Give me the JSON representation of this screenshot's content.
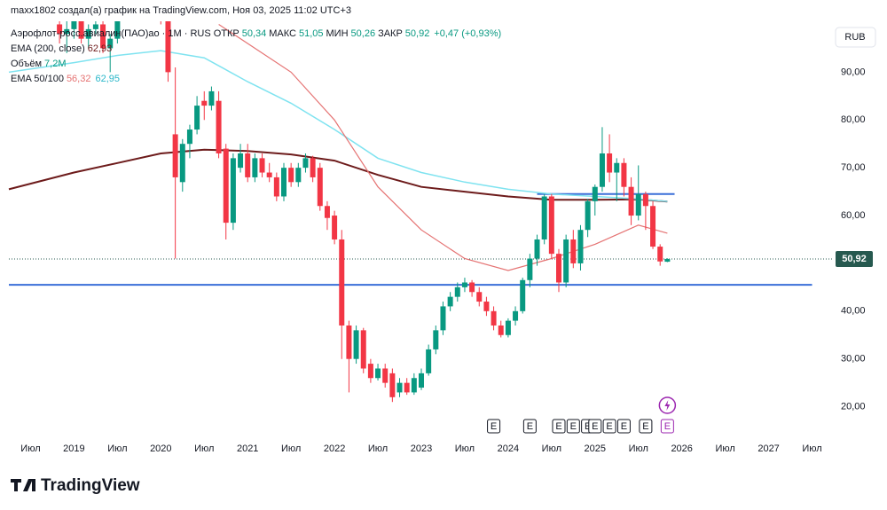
{
  "header": {
    "text": "maxx1802 создал(а) график на TradingView.com, Ноя 03, 2025 11:02 UTC+3"
  },
  "legend": {
    "symbol": "Аэрофлот-росс.авиалин(ПАО)ао · 1М · RUS",
    "open_label": "ОТКР",
    "open": "50,34",
    "high_label": "МАКС",
    "high": "51,05",
    "low_label": "МИН",
    "low": "50,26",
    "close_label": "ЗАКР",
    "close": "50,92",
    "change": "+0,47 (+0,93%)",
    "ema200_label": "EMA (200, close)",
    "ema200": "62,93",
    "volume_label": "Объём",
    "volume": "7,2M",
    "ema50100_label": "EMA 50/100",
    "ema50": "56,32",
    "ema100": "62,95"
  },
  "currency": "RUB",
  "footer": {
    "brand": "TradingView"
  },
  "chart_data": {
    "type": "candlestick",
    "up_color": "#089981",
    "down_color": "#f23645",
    "xlim": [
      "2018-04",
      "2027-10"
    ],
    "ylim": [
      13.8,
      105.1
    ],
    "xticks": [
      {
        "value": "2018-07",
        "label": "Июл"
      },
      {
        "value": "2019-01",
        "label": "2019"
      },
      {
        "value": "2019-07",
        "label": "Июл"
      },
      {
        "value": "2020-01",
        "label": "2020"
      },
      {
        "value": "2020-07",
        "label": "Июл"
      },
      {
        "value": "2021-01",
        "label": "2021"
      },
      {
        "value": "2021-07",
        "label": "Июл"
      },
      {
        "value": "2022-01",
        "label": "2022"
      },
      {
        "value": "2022-07",
        "label": "Июл"
      },
      {
        "value": "2023-01",
        "label": "2023"
      },
      {
        "value": "2023-07",
        "label": "Июл"
      },
      {
        "value": "2024-01",
        "label": "2024"
      },
      {
        "value": "2024-07",
        "label": "Июл"
      },
      {
        "value": "2025-01",
        "label": "2025"
      },
      {
        "value": "2025-07",
        "label": "Июл"
      },
      {
        "value": "2026-01",
        "label": "2026"
      },
      {
        "value": "2026-07",
        "label": "Июл"
      },
      {
        "value": "2027-01",
        "label": "2027"
      },
      {
        "value": "2027-07",
        "label": "Июл"
      }
    ],
    "yticks": [
      {
        "value": 20,
        "label": "20,00"
      },
      {
        "value": 30,
        "label": "30,00"
      },
      {
        "value": 40,
        "label": "40,00"
      },
      {
        "value": 60,
        "label": "60,00"
      },
      {
        "value": 70,
        "label": "70,00"
      },
      {
        "value": 80,
        "label": "80,00"
      },
      {
        "value": 90,
        "label": "90,00"
      }
    ],
    "x": [
      "2018-11",
      "2018-12",
      "2019-01",
      "2019-02",
      "2019-03",
      "2019-04",
      "2019-05",
      "2019-06",
      "2019-07",
      "2019-08",
      "2019-09",
      "2019-10",
      "2019-11",
      "2019-12",
      "2020-01",
      "2020-02",
      "2020-03",
      "2020-04",
      "2020-05",
      "2020-06",
      "2020-07",
      "2020-08",
      "2020-09",
      "2020-10",
      "2020-11",
      "2020-12",
      "2021-01",
      "2021-02",
      "2021-03",
      "2021-04",
      "2021-05",
      "2021-06",
      "2021-07",
      "2021-08",
      "2021-09",
      "2021-10",
      "2021-11",
      "2021-12",
      "2022-01",
      "2022-02",
      "2022-03",
      "2022-04",
      "2022-05",
      "2022-06",
      "2022-07",
      "2022-08",
      "2022-09",
      "2022-10",
      "2022-11",
      "2022-12",
      "2023-01",
      "2023-02",
      "2023-03",
      "2023-04",
      "2023-05",
      "2023-06",
      "2023-07",
      "2023-08",
      "2023-09",
      "2023-10",
      "2023-11",
      "2023-12",
      "2024-01",
      "2024-02",
      "2024-03",
      "2024-04",
      "2024-05",
      "2024-06",
      "2024-07",
      "2024-08",
      "2024-09",
      "2024-10",
      "2024-11",
      "2024-12",
      "2025-01",
      "2025-02",
      "2025-03",
      "2025-04",
      "2025-05",
      "2025-06",
      "2025-07",
      "2025-08",
      "2025-09",
      "2025-10",
      "2025-11"
    ],
    "ohlc": [
      [
        100,
        104,
        96,
        98
      ],
      [
        98,
        101,
        94,
        99
      ],
      [
        99,
        103,
        97,
        101
      ],
      [
        101,
        102,
        96,
        97
      ],
      [
        97,
        100,
        95,
        99
      ],
      [
        99,
        103,
        98,
        100
      ],
      [
        100,
        101,
        94,
        95
      ],
      [
        95,
        98,
        90,
        97
      ],
      [
        97,
        104,
        96,
        103
      ],
      [
        103,
        110,
        101,
        108
      ],
      [
        108,
        112,
        104,
        106
      ],
      [
        106,
        110,
        103,
        109
      ],
      [
        109,
        112,
        105,
        107
      ],
      [
        107,
        110,
        104,
        108
      ],
      [
        108,
        110,
        100,
        102
      ],
      [
        102,
        104,
        88,
        90
      ],
      [
        77,
        91,
        51,
        68
      ],
      [
        67,
        76,
        65,
        75
      ],
      [
        75,
        79,
        72,
        78
      ],
      [
        78,
        85,
        77,
        83
      ],
      [
        84,
        86,
        80,
        83
      ],
      [
        83,
        87,
        82,
        86
      ],
      [
        84,
        86,
        72,
        73
      ],
      [
        74,
        75,
        55,
        58.5
      ],
      [
        58.5,
        73,
        57,
        72
      ],
      [
        70,
        75,
        69,
        73
      ],
      [
        73,
        75,
        67,
        68
      ],
      [
        68,
        73,
        67,
        72
      ],
      [
        72,
        73,
        68,
        69
      ],
      [
        69,
        71,
        67,
        68
      ],
      [
        68,
        69,
        63,
        64
      ],
      [
        64,
        71,
        63,
        70
      ],
      [
        70,
        71,
        66,
        67
      ],
      [
        67,
        71,
        66,
        70
      ],
      [
        70,
        73,
        69,
        72
      ],
      [
        72,
        72.5,
        67,
        68
      ],
      [
        70,
        71,
        61,
        62
      ],
      [
        62,
        63,
        57,
        59.5
      ],
      [
        60,
        61,
        54,
        55
      ],
      [
        55,
        57,
        30,
        37
      ],
      [
        37,
        38,
        23,
        30
      ],
      [
        30,
        37,
        29,
        36
      ],
      [
        36,
        36.5,
        27,
        28
      ],
      [
        29,
        30,
        25,
        26
      ],
      [
        26,
        29,
        25.5,
        28
      ],
      [
        28,
        29,
        24,
        25
      ],
      [
        27,
        28,
        21,
        22
      ],
      [
        23,
        26,
        22,
        25
      ],
      [
        25,
        26,
        22.5,
        23
      ],
      [
        23,
        27,
        22.5,
        26
      ],
      [
        24,
        28,
        23.5,
        27
      ],
      [
        27,
        33,
        26.5,
        32
      ],
      [
        32,
        37,
        31,
        36
      ],
      [
        36,
        42,
        35,
        41
      ],
      [
        41,
        44,
        40,
        43
      ],
      [
        43,
        46,
        42,
        45
      ],
      [
        45,
        47,
        44,
        46
      ],
      [
        46,
        46.5,
        43,
        44
      ],
      [
        44,
        45,
        41,
        42
      ],
      [
        42,
        43,
        39,
        40
      ],
      [
        40,
        41,
        36,
        37
      ],
      [
        37,
        38,
        34.5,
        35
      ],
      [
        35,
        38.5,
        34.5,
        38
      ],
      [
        38,
        41,
        37,
        40
      ],
      [
        40,
        47,
        39.5,
        46.5
      ],
      [
        46.5,
        52,
        45,
        51
      ],
      [
        51,
        56,
        49.5,
        55
      ],
      [
        55,
        64.5,
        54,
        64
      ],
      [
        64,
        64.5,
        51,
        52
      ],
      [
        52,
        53,
        44,
        46
      ],
      [
        46,
        56,
        45,
        55
      ],
      [
        55,
        57,
        49,
        50
      ],
      [
        50,
        58,
        48.5,
        57
      ],
      [
        57,
        63.5,
        55.5,
        63
      ],
      [
        63,
        66.5,
        60,
        66
      ],
      [
        66,
        78.5,
        65,
        73
      ],
      [
        73,
        77,
        67,
        69
      ],
      [
        69,
        72,
        63,
        71
      ],
      [
        71,
        72,
        64,
        66
      ],
      [
        66,
        68,
        58,
        60
      ],
      [
        60,
        70.5,
        59,
        64.5
      ],
      [
        64.5,
        65,
        57,
        62
      ],
      [
        62,
        63,
        53,
        53.5
      ],
      [
        53.5,
        54,
        49.5,
        50.4
      ],
      [
        50.34,
        51.05,
        50.26,
        50.92
      ]
    ],
    "lines": [
      {
        "name": "EMA 200",
        "color": "#6d1b1b",
        "width": 2,
        "x": [
          "2018-04",
          "2019-01",
          "2019-07",
          "2020-01",
          "2020-07",
          "2021-01",
          "2021-07",
          "2022-01",
          "2022-07",
          "2023-01",
          "2023-07",
          "2024-01",
          "2024-07",
          "2025-01",
          "2025-07",
          "2025-11"
        ],
        "values": [
          65.5,
          69,
          71,
          73,
          73.8,
          73.5,
          72.8,
          71.5,
          68.5,
          66,
          65,
          64,
          63.3,
          63.3,
          63.4,
          62.93
        ]
      },
      {
        "name": "EMA 100",
        "color": "#7fe3f0",
        "width": 1.5,
        "x": [
          "2018-04",
          "2019-01",
          "2019-07",
          "2020-01",
          "2020-07",
          "2021-01",
          "2021-07",
          "2022-01",
          "2022-07",
          "2023-01",
          "2023-07",
          "2024-01",
          "2024-07",
          "2025-01",
          "2025-07",
          "2025-11"
        ],
        "values": [
          90,
          92,
          93.5,
          94.5,
          93,
          88,
          83.5,
          78,
          72,
          69,
          67,
          65.5,
          64.5,
          64,
          63.5,
          62.95
        ]
      },
      {
        "name": "EMA 50",
        "color": "#e57373",
        "width": 1.2,
        "x": [
          "2020-09",
          "2021-01",
          "2021-07",
          "2022-01",
          "2022-07",
          "2023-01",
          "2023-07",
          "2024-01",
          "2024-07",
          "2025-01",
          "2025-07",
          "2025-11"
        ],
        "values": [
          100,
          96,
          90,
          80,
          66,
          57,
          51,
          48.5,
          51,
          54,
          58,
          56.32
        ]
      }
    ],
    "hlines": [
      {
        "value": 45.5,
        "from": "2018-04",
        "to": "2027-07",
        "color": "#3a6fd8"
      },
      {
        "value": 64.5,
        "from": "2024-05",
        "to": "2025-12",
        "color": "#3a6fd8"
      }
    ],
    "last_price": {
      "value": 50.92,
      "label": "50,92",
      "color": "#26594f"
    },
    "earnings": {
      "label": "E",
      "x": [
        "2023-11",
        "2024-04",
        "2024-08",
        "2024-10",
        "2024-12",
        "2025-01",
        "2025-03",
        "2025-05",
        "2025-08"
      ],
      "upcoming": "2025-11"
    }
  }
}
